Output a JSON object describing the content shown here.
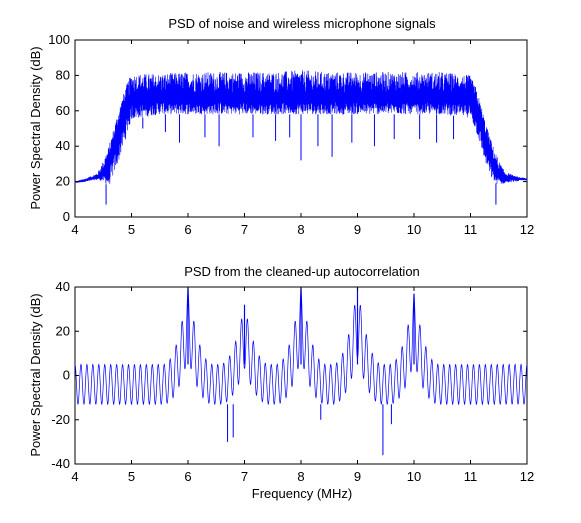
{
  "chart_data": [
    {
      "type": "line",
      "title": "PSD of noise and wireless microphone signals",
      "xlabel": "",
      "ylabel": "Power Spectral Density (dB)",
      "xlim": [
        4,
        12
      ],
      "ylim": [
        0,
        100
      ],
      "xticks": [
        "4",
        "5",
        "6",
        "7",
        "8",
        "9",
        "10",
        "11",
        "12"
      ],
      "yticks": [
        "0",
        "20",
        "40",
        "60",
        "80",
        "100"
      ],
      "grid": false,
      "color": "#0000ff",
      "series": [
        {
          "x": [
            4.0,
            4.2,
            4.4,
            4.5,
            4.6,
            4.7,
            4.8,
            4.9,
            5.0,
            5.5,
            6.0,
            6.5,
            7.0,
            7.5,
            8.0,
            8.5,
            9.0,
            9.5,
            10.0,
            10.5,
            11.0,
            11.1,
            11.2,
            11.3,
            11.4,
            11.5,
            11.6,
            11.8,
            12.0
          ],
          "y_top": [
            20,
            22,
            25,
            32,
            40,
            52,
            64,
            74,
            81,
            81,
            82,
            82,
            82,
            82,
            83,
            82,
            82,
            82,
            82,
            82,
            80,
            73,
            62,
            50,
            40,
            32,
            26,
            23,
            22
          ],
          "y_band_top": [
            20,
            21,
            23,
            26,
            33,
            44,
            55,
            65,
            70,
            70,
            70,
            70,
            70,
            70,
            70,
            70,
            70,
            70,
            70,
            70,
            70,
            64,
            53,
            41,
            32,
            26,
            23,
            22,
            21
          ],
          "y_band_bottom": [
            19,
            20,
            21,
            20,
            17,
            25,
            34,
            44,
            55,
            58,
            58,
            58,
            58,
            58,
            58,
            58,
            58,
            58,
            58,
            58,
            56,
            48,
            37,
            27,
            20,
            18,
            19,
            20,
            21
          ],
          "dips": [
            [
              4.55,
              7
            ],
            [
              5.2,
              50
            ],
            [
              5.6,
              48
            ],
            [
              5.85,
              42
            ],
            [
              6.3,
              45
            ],
            [
              6.55,
              40
            ],
            [
              7.15,
              45
            ],
            [
              7.55,
              43
            ],
            [
              7.8,
              45
            ],
            [
              8.0,
              32
            ],
            [
              8.3,
              40
            ],
            [
              8.55,
              34
            ],
            [
              8.9,
              42
            ],
            [
              9.3,
              40
            ],
            [
              9.65,
              44
            ],
            [
              10.1,
              44
            ],
            [
              10.4,
              42
            ],
            [
              10.7,
              44
            ],
            [
              11.45,
              7
            ]
          ]
        }
      ]
    },
    {
      "type": "line",
      "title": "PSD from the cleaned-up autocorrelation",
      "xlabel": "Frequency (MHz)",
      "ylabel": "Power Spectral Density (dB)",
      "xlim": [
        4,
        12
      ],
      "ylim": [
        -40,
        40
      ],
      "xticks": [
        "4",
        "5",
        "6",
        "7",
        "8",
        "9",
        "10",
        "11",
        "12"
      ],
      "yticks": [
        "-40",
        "-20",
        "0",
        "20",
        "40"
      ],
      "grid": false,
      "color": "#0000ff",
      "series": [
        {
          "peaks": [
            [
              6,
              40
            ],
            [
              7,
              32
            ],
            [
              8,
              40
            ],
            [
              9,
              40
            ],
            [
              10,
              37
            ]
          ],
          "baseline_top": 5,
          "baseline_bottom": -13,
          "dips": [
            [
              6.7,
              -30
            ],
            [
              6.8,
              -28
            ],
            [
              8.35,
              -20
            ],
            [
              9.45,
              -36
            ],
            [
              9.6,
              -22
            ]
          ]
        }
      ]
    }
  ]
}
